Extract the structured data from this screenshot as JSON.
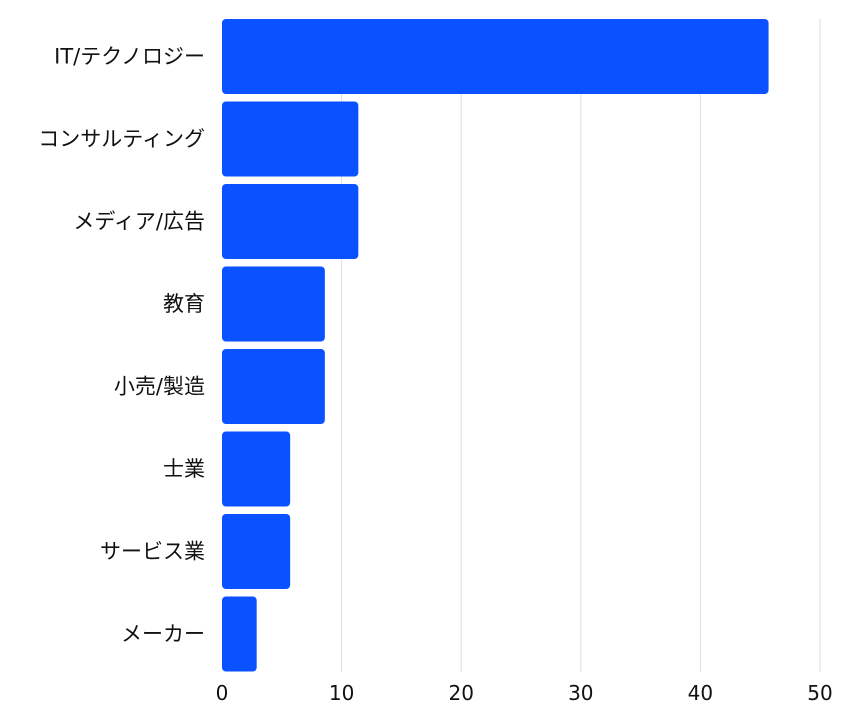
{
  "chart_data": {
    "type": "bar",
    "orientation": "horizontal",
    "categories": [
      "IT/テクノロジー",
      "コンサルティング",
      "メディア/広告",
      "教育",
      "小売/製造",
      "士業",
      "サービス業",
      "メーカー"
    ],
    "values": [
      45.7,
      11.4,
      11.4,
      8.6,
      8.6,
      5.7,
      5.7,
      2.9
    ],
    "xlim": [
      0,
      50
    ],
    "xticks": [
      "0",
      "10",
      "20",
      "30",
      "40",
      "50"
    ],
    "grid": true,
    "title": "",
    "xlabel": "",
    "ylabel": "",
    "bar_color": "#0a52ff",
    "grid_color": "#dedede",
    "label_color": "#111111"
  }
}
